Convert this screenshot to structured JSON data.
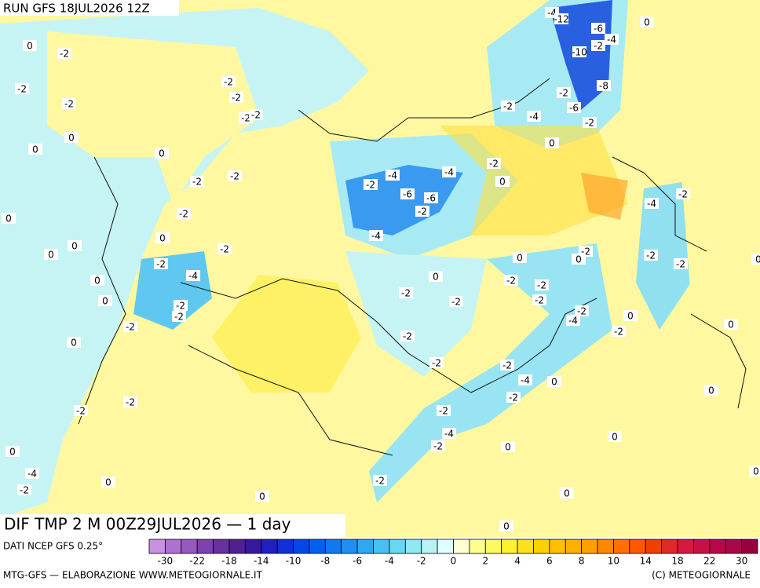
{
  "header": {
    "run": "RUN GFS 18JUL2026 12Z"
  },
  "footer": {
    "title": "DIF TMP 2 M 00Z29JUL2026 — 1 day",
    "source": "DATI NCEP GFS 0.25°",
    "credit": "MTG-GFS — ELABORAZIONE WWW.METEOGIORNALE.IT",
    "copyright": "(C) METEOGIORNALE"
  },
  "colorbar": {
    "ticks": [
      -30,
      -22,
      -18,
      -14,
      -10,
      -8,
      -6,
      -4,
      -2,
      0,
      2,
      4,
      6,
      8,
      10,
      14,
      18,
      22,
      30
    ],
    "colors": [
      "#c890e0",
      "#b070d0",
      "#9858c0",
      "#8040b0",
      "#6830a0",
      "#502090",
      "#3818a0",
      "#2020c0",
      "#1030d8",
      "#0048e8",
      "#0060f0",
      "#1078f0",
      "#2090f0",
      "#30a8f0",
      "#48c0f0",
      "#68d8f0",
      "#90e8f0",
      "#b8f4f4",
      "#ddffff",
      "#ffffd0",
      "#ffff90",
      "#fff860",
      "#fff030",
      "#ffe020",
      "#ffd000",
      "#ffc000",
      "#ffb000",
      "#ffa000",
      "#ff8800",
      "#ff7000",
      "#ff5800",
      "#f04000",
      "#e02828",
      "#d81840",
      "#c81048",
      "#b80848",
      "#a80848",
      "#980040"
    ]
  },
  "map": {
    "contour_labels": [
      -4,
      -12,
      -6,
      -4,
      -2,
      -10,
      -8,
      -2,
      -6,
      -2,
      -4,
      -2,
      0,
      0,
      -2,
      0,
      -4,
      -4,
      -2,
      -6,
      -6,
      -2,
      -4,
      -2,
      -4,
      -2,
      -2,
      0,
      -2,
      0,
      -2,
      -2,
      -2,
      -2,
      -4,
      -2,
      0,
      0,
      -2,
      -2,
      -2,
      -2,
      -2,
      -4,
      0,
      -2,
      0,
      -2,
      -4,
      -2,
      0,
      0,
      0,
      0,
      -2,
      0,
      0,
      -2,
      -4,
      0,
      -2,
      -2,
      0,
      -2,
      -2,
      -2,
      -4,
      -2,
      0,
      0,
      -2,
      0,
      0,
      0,
      0,
      -2,
      -2,
      -2,
      0,
      0,
      0,
      -2,
      -2,
      -2,
      0,
      -2,
      -2,
      -2,
      -2,
      0,
      0,
      0
    ]
  }
}
